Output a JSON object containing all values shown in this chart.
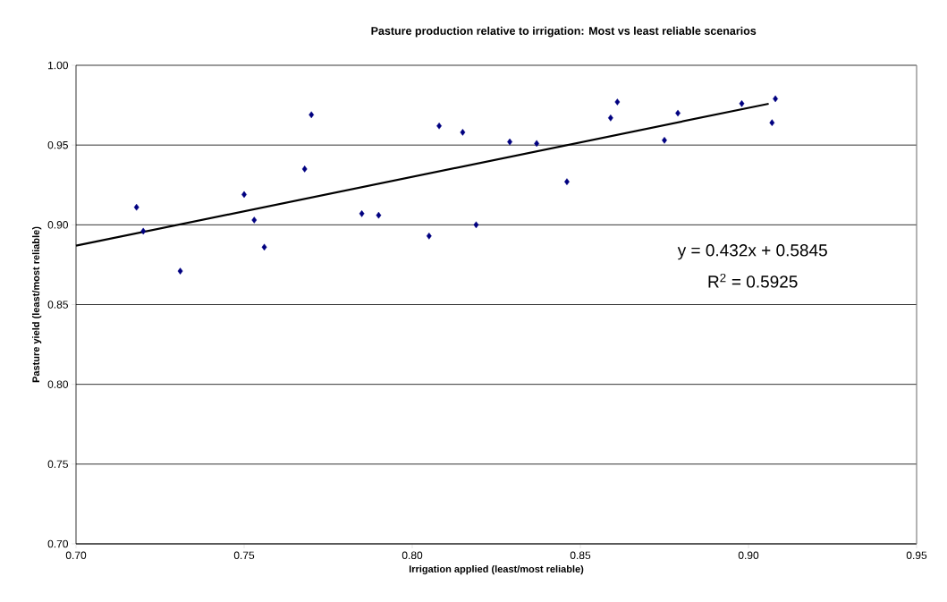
{
  "chart_data": {
    "type": "scatter",
    "title": "Pasture production relative to irrigation: Most vs least reliable scenarios",
    "xlabel": "Irrigation applied (least/most reliable)",
    "ylabel": "Pasture yield (least/most reliable)",
    "series": [
      {
        "color": "#000080",
        "marker": "diamond",
        "x": [
          0.718,
          0.72,
          0.731,
          0.75,
          0.753,
          0.756,
          0.768,
          0.77,
          0.785,
          0.79,
          0.805,
          0.808,
          0.815,
          0.819,
          0.829,
          0.837,
          0.846,
          0.859,
          0.861,
          0.875,
          0.879,
          0.898,
          0.908,
          0.907
        ],
        "values": [
          0.911,
          0.896,
          0.871,
          0.919,
          0.903,
          0.886,
          0.935,
          0.969,
          0.907,
          0.906,
          0.893,
          0.962,
          0.958,
          0.9,
          0.952,
          0.951,
          0.927,
          0.967,
          0.977,
          0.953,
          0.97,
          0.976,
          0.979,
          0.964
        ]
      },
      {
        "type": "line",
        "color": "#000000",
        "marker": "none",
        "line_style": "solid",
        "x": [
          0.7,
          0.906
        ],
        "values": [
          0.8869,
          0.9759
        ]
      }
    ],
    "xlim": [
      0.7,
      0.95
    ],
    "xticks": [
      {
        "value": 0.7,
        "label": "0.70"
      },
      {
        "value": 0.75,
        "label": "0.75"
      },
      {
        "value": 0.8,
        "label": "0.80"
      },
      {
        "value": 0.85,
        "label": "0.85"
      },
      {
        "value": 0.9,
        "label": "0.90"
      },
      {
        "value": 0.95,
        "label": "0.95"
      }
    ],
    "ylim": [
      0.7,
      1.0
    ],
    "yticks": [
      {
        "value": 0.7,
        "label": "0.70"
      },
      {
        "value": 0.75,
        "label": "0.75"
      },
      {
        "value": 0.8,
        "label": "0.80"
      },
      {
        "value": 0.85,
        "label": "0.85"
      },
      {
        "value": 0.9,
        "label": "0.90"
      },
      {
        "value": 0.95,
        "label": "0.95"
      },
      {
        "value": 1.0,
        "label": "1.00"
      }
    ],
    "grid": "y",
    "annotations": [
      "y = 0.432x + 0.5845",
      "R$^{2}$ = 0.5925"
    ]
  }
}
